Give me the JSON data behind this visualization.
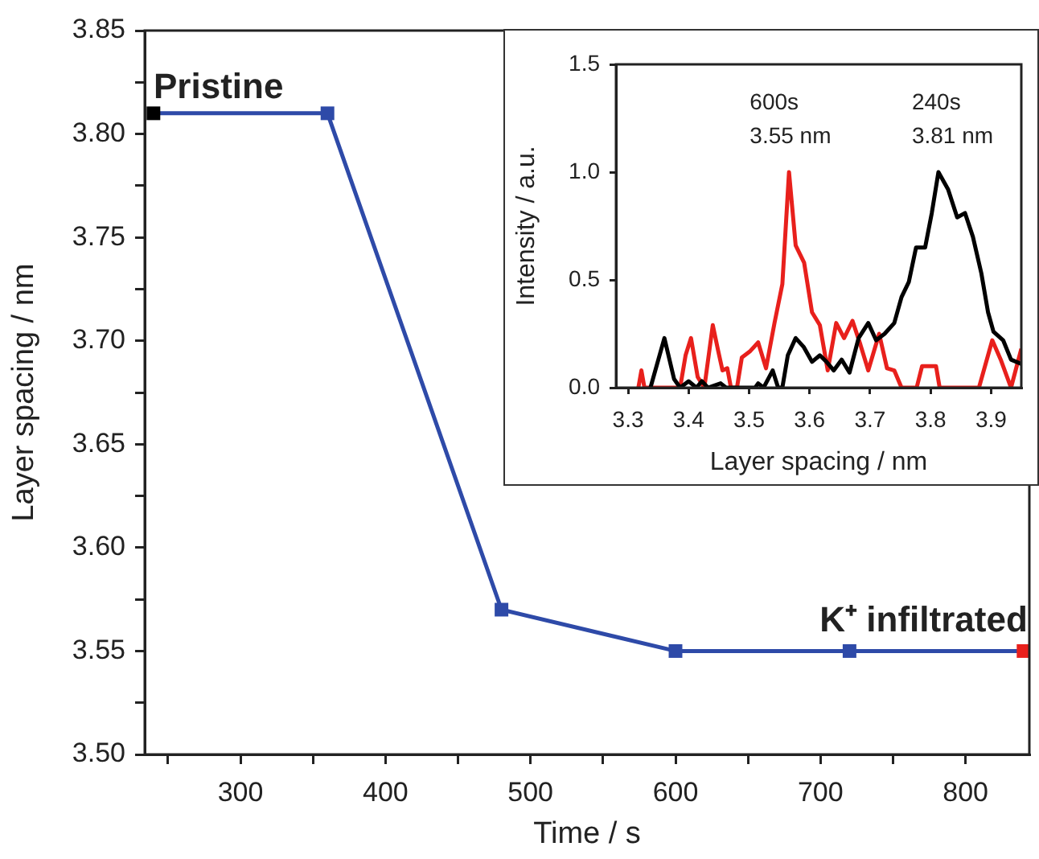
{
  "chart_data": [
    {
      "type": "line",
      "xlabel": "Time / s",
      "ylabel": "Layer spacing / nm",
      "x": [
        240,
        360,
        480,
        600,
        720,
        840
      ],
      "series": [
        {
          "color": "#2e4aa8",
          "colors": [
            "#000000",
            "#2e4aa8",
            "#2e4aa8",
            "#2e4aa8",
            "#2e4aa8",
            "#e8201c"
          ],
          "values": [
            3.81,
            3.81,
            3.57,
            3.55,
            3.55,
            3.55
          ]
        }
      ],
      "xlim": [
        234,
        844
      ],
      "xticks": [
        {
          "value": 250,
          "label": null
        },
        300,
        {
          "value": 350,
          "label": null
        },
        400,
        {
          "value": 450,
          "label": null
        },
        500,
        {
          "value": 550,
          "label": null
        },
        600,
        {
          "value": 650,
          "label": null
        },
        700,
        {
          "value": 750,
          "label": null
        },
        800
      ],
      "ylim": [
        3.5,
        3.85
      ],
      "yticks": [
        {
          "value": 3.5,
          "label": "3.50"
        },
        {
          "value": 3.525,
          "label": null
        },
        {
          "value": 3.55,
          "label": "3.55"
        },
        {
          "value": 3.575,
          "label": null
        },
        {
          "value": 3.6,
          "label": "3.60"
        },
        {
          "value": 3.625,
          "label": null
        },
        {
          "value": 3.65,
          "label": "3.65"
        },
        {
          "value": 3.675,
          "label": null
        },
        {
          "value": 3.7,
          "label": "3.70"
        },
        {
          "value": 3.725,
          "label": null
        },
        {
          "value": 3.75,
          "label": "3.75"
        },
        {
          "value": 3.775,
          "label": null
        },
        {
          "value": 3.8,
          "label": "3.80"
        },
        {
          "value": 3.825,
          "label": null
        },
        {
          "value": 3.85,
          "label": "3.85"
        }
      ],
      "marker": "square",
      "grid": false,
      "legend": false,
      "annotations": [
        "Pristine",
        "K⁺ infiltrated"
      ]
    },
    {
      "type": "line",
      "xlabel": "Layer spacing / nm",
      "ylabel": "Intensity / a.u.",
      "series": [
        {
          "color": "#000000",
          "x": [
            3.337,
            3.36,
            3.376,
            3.386,
            3.4,
            3.413,
            3.422,
            3.432,
            3.453,
            3.462,
            3.51,
            3.515,
            3.524,
            3.539,
            3.548,
            3.555,
            3.564,
            3.577,
            3.59,
            3.604,
            3.617,
            3.628,
            3.64,
            3.653,
            3.666,
            3.681,
            3.697,
            3.71,
            3.724,
            3.74,
            3.752,
            3.764,
            3.776,
            3.791,
            3.802,
            3.813,
            3.829,
            3.844,
            3.857,
            3.87,
            3.884,
            3.895,
            3.904,
            3.92,
            3.933,
            3.95
          ],
          "values": [
            0,
            0.23,
            0.04,
            0,
            0.03,
            0,
            0.03,
            0,
            0.02,
            0,
            0,
            0.02,
            0,
            0.08,
            0,
            0,
            0.15,
            0.23,
            0.19,
            0.12,
            0.15,
            0.12,
            0.08,
            0.13,
            0.07,
            0.23,
            0.3,
            0.22,
            0.25,
            0.3,
            0.42,
            0.49,
            0.65,
            0.65,
            0.81,
            1.0,
            0.92,
            0.79,
            0.81,
            0.7,
            0.53,
            0.35,
            0.26,
            0.22,
            0.13,
            0.11
          ]
        },
        {
          "color": "#e8201c",
          "x": [
            3.317,
            3.322,
            3.327,
            3.386,
            3.395,
            3.404,
            3.415,
            3.426,
            3.44,
            3.449,
            3.456,
            3.464,
            3.47,
            3.48,
            3.488,
            3.502,
            3.515,
            3.528,
            3.542,
            3.555,
            3.566,
            3.577,
            3.591,
            3.604,
            3.617,
            3.63,
            3.644,
            3.657,
            3.671,
            3.684,
            3.697,
            3.715,
            3.728,
            3.74,
            3.752,
            3.777,
            3.786,
            3.809,
            3.815,
            3.88,
            3.902,
            3.916,
            3.933,
            3.95
          ],
          "values": [
            0,
            0.08,
            0,
            0,
            0.15,
            0.23,
            0.05,
            0,
            0.29,
            0.17,
            0.08,
            0.09,
            0,
            0,
            0.14,
            0.17,
            0.21,
            0.09,
            0.3,
            0.48,
            1.0,
            0.66,
            0.58,
            0.35,
            0.29,
            0.08,
            0.3,
            0.23,
            0.31,
            0.2,
            0.08,
            0.25,
            0.09,
            0.08,
            0,
            0,
            0.1,
            0.1,
            0,
            0,
            0.22,
            0.13,
            0,
            0.18
          ]
        }
      ],
      "xlim": [
        3.28,
        3.95
      ],
      "xticks": [
        3.3,
        3.4,
        3.5,
        3.6,
        3.7,
        3.8,
        3.9
      ],
      "ylim": [
        0,
        1.5
      ],
      "yticks": [
        {
          "value": 0,
          "label": "0.0"
        },
        {
          "value": 0.5,
          "label": "0.5"
        },
        {
          "value": 1,
          "label": "1.0"
        },
        {
          "value": 1.5,
          "label": "1.5"
        }
      ],
      "marker": "none",
      "grid": false,
      "legend": false,
      "annotations": [
        "600s",
        "3.55 nm",
        "240s",
        "3.81 nm"
      ]
    }
  ]
}
